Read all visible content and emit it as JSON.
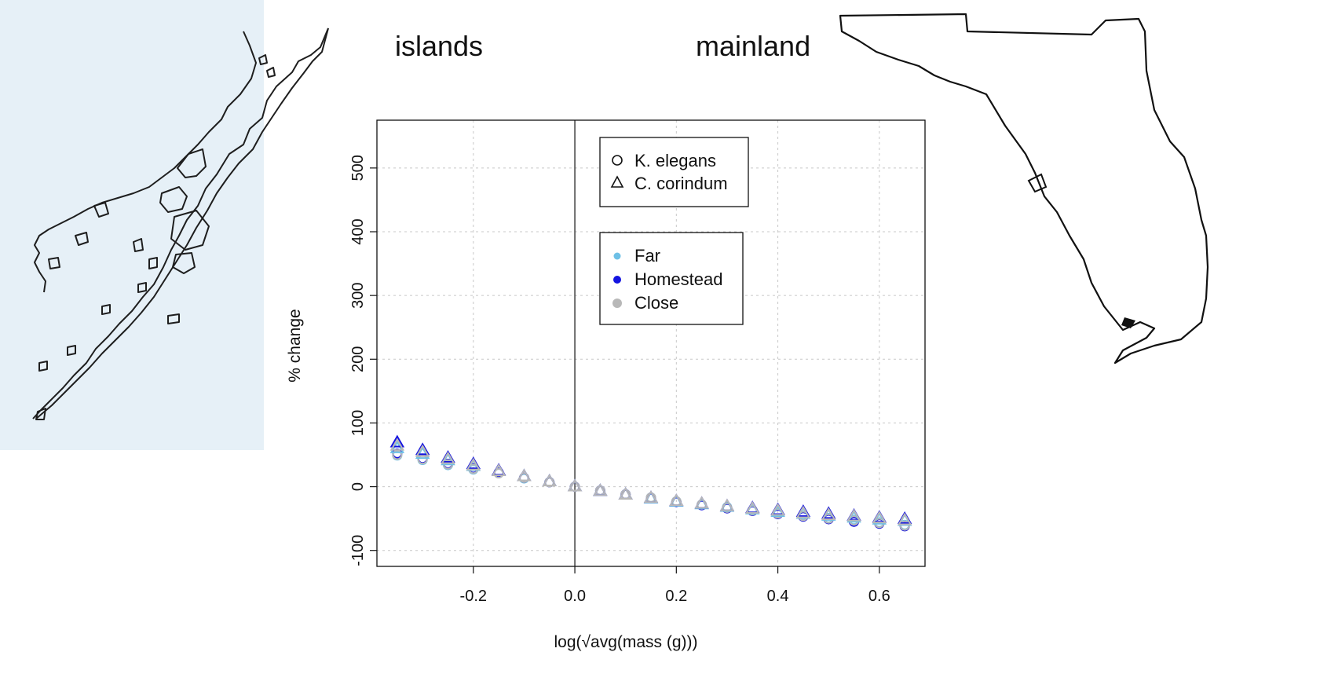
{
  "labels": {
    "islands": "islands",
    "mainland": "mainland"
  },
  "colors": {
    "far": "#6ec0e6",
    "homestead": "#1414e0",
    "close": "#b8b8b8",
    "island_bg": "#e6f0f7"
  },
  "chart_data": {
    "type": "scatter",
    "title": "",
    "xlabel": "log(√avg(mass (g)))",
    "ylabel": "% change",
    "xlim": [
      -0.39,
      0.69
    ],
    "ylim": [
      -125,
      575
    ],
    "xticks": [
      -0.2,
      0.0,
      0.2,
      0.4,
      0.6
    ],
    "xtick_labels": [
      "-0.2",
      "0.0",
      "0.2",
      "0.4",
      "0.6"
    ],
    "yticks": [
      -100,
      0,
      100,
      200,
      300,
      400,
      500
    ],
    "ytick_labels": [
      "-100",
      "0",
      "100",
      "200",
      "300",
      "400",
      "500"
    ],
    "grid": true,
    "vline_x": 0,
    "legend_shapes": {
      "placement": "top-center",
      "entries": [
        {
          "label": "K. elegans",
          "marker": "circle"
        },
        {
          "label": "C. corindum",
          "marker": "triangle"
        }
      ]
    },
    "legend_colors": {
      "placement": "top-center",
      "entries": [
        {
          "label": "Far",
          "color_key": "far"
        },
        {
          "label": "Homestead",
          "color_key": "homestead"
        },
        {
          "label": "Close",
          "color_key": "close"
        }
      ]
    },
    "x": [
      -0.35,
      -0.3,
      -0.25,
      -0.2,
      -0.15,
      -0.1,
      -0.05,
      0.0,
      0.05,
      0.1,
      0.15,
      0.2,
      0.25,
      0.3,
      0.35,
      0.4,
      0.45,
      0.5,
      0.55,
      0.6,
      0.65
    ],
    "series": [
      {
        "species": "K. elegans",
        "marker": "circle",
        "site": "Far",
        "values": [
          49,
          42,
          34,
          27,
          21,
          13,
          7,
          0,
          -6,
          -12,
          -17,
          -23,
          -28,
          -32,
          -37,
          -41,
          -45,
          -49,
          -52,
          -56,
          -60
        ]
      },
      {
        "species": "K. elegans",
        "marker": "circle",
        "site": "Homestead",
        "values": [
          52,
          44,
          36,
          29,
          22,
          14,
          7,
          0,
          -6,
          -12,
          -18,
          -24,
          -29,
          -34,
          -38,
          -43,
          -47,
          -51,
          -55,
          -58,
          -62
        ]
      },
      {
        "species": "K. elegans",
        "marker": "circle",
        "site": "Close",
        "values": [
          50,
          43,
          35,
          28,
          21,
          14,
          7,
          0,
          -6,
          -12,
          -17,
          -23,
          -28,
          -33,
          -37,
          -42,
          -46,
          -50,
          -53,
          -57,
          -61
        ]
      },
      {
        "species": "C. corindum",
        "marker": "triangle",
        "site": "Far",
        "values": [
          60,
          51,
          41,
          32,
          24,
          16,
          8,
          0,
          -7,
          -13,
          -19,
          -24,
          -28,
          -32,
          -36,
          -40,
          -43,
          -46,
          -49,
          -52,
          -54
        ]
      },
      {
        "species": "C. corindum",
        "marker": "triangle",
        "site": "Homestead",
        "values": [
          69,
          57,
          45,
          35,
          25,
          16,
          8,
          0,
          -7,
          -13,
          -18,
          -23,
          -27,
          -31,
          -34,
          -37,
          -40,
          -43,
          -46,
          -49,
          -51
        ]
      },
      {
        "species": "C. corindum",
        "marker": "triangle",
        "site": "Close",
        "values": [
          64,
          54,
          43,
          33,
          24,
          16,
          8,
          0,
          -7,
          -13,
          -18,
          -23,
          -27,
          -31,
          -35,
          -38,
          -42,
          -45,
          -47,
          -50,
          -53
        ]
      }
    ]
  }
}
